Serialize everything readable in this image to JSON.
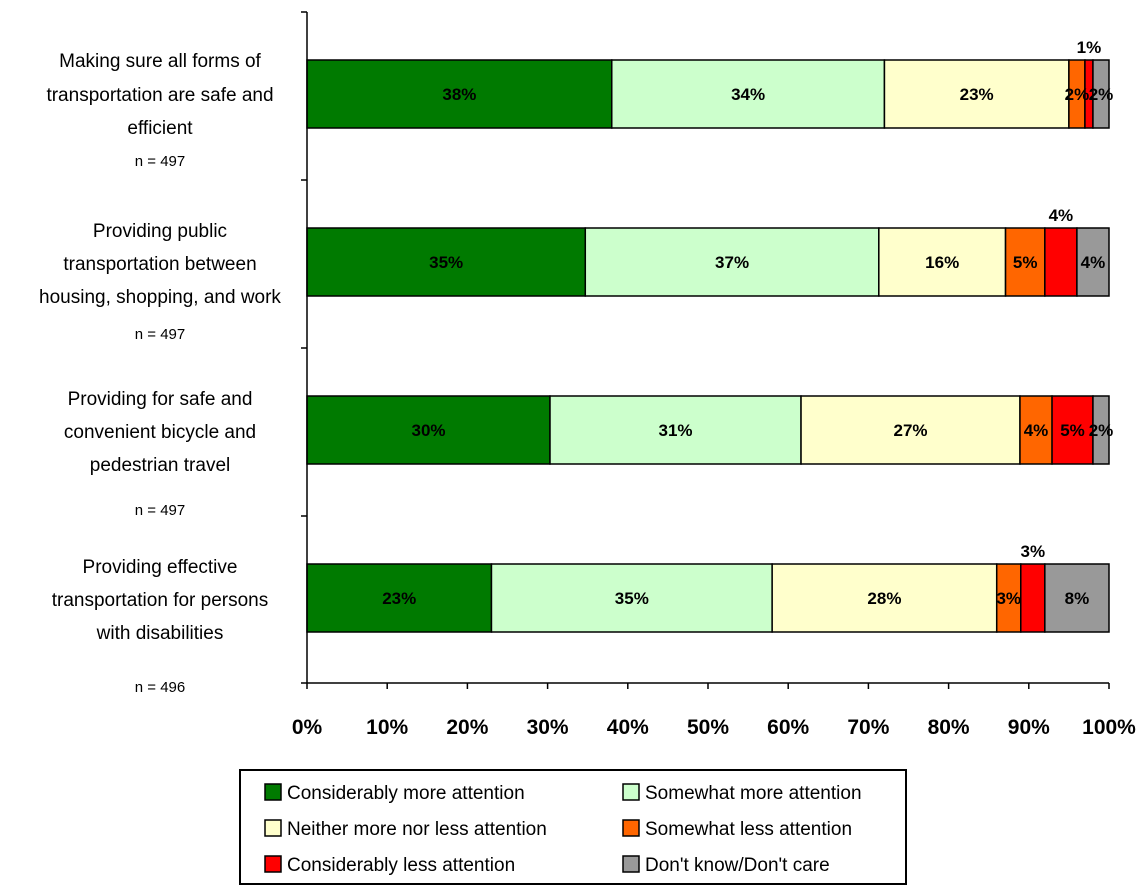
{
  "chart_data": {
    "type": "bar",
    "orientation": "horizontal",
    "stacked": true,
    "xlim": [
      0,
      100
    ],
    "x_ticks": [
      "0%",
      "10%",
      "20%",
      "30%",
      "40%",
      "50%",
      "60%",
      "70%",
      "80%",
      "90%",
      "100%"
    ],
    "grid": false,
    "legend_position": "bottom",
    "categories": [
      {
        "lines": [
          "Making sure all forms of",
          "transportation are safe and",
          "efficient"
        ],
        "n": "n = 497"
      },
      {
        "lines": [
          "Providing public",
          "transportation between",
          "housing, shopping, and work"
        ],
        "n": "n = 497"
      },
      {
        "lines": [
          "Providing for safe and",
          "convenient bicycle and",
          "pedestrian travel"
        ],
        "n": "n = 497"
      },
      {
        "lines": [
          "Providing effective",
          "transportation for persons",
          "with disabilities"
        ],
        "n": "n = 496"
      }
    ],
    "series": [
      {
        "name": "Considerably more attention",
        "color": "#007a00",
        "values": [
          38,
          34.7,
          30.3,
          23
        ],
        "labels": [
          "38%",
          "35%",
          "30%",
          "23%"
        ],
        "label_pos": [
          "in",
          "in",
          "in",
          "in"
        ]
      },
      {
        "name": "Somewhat more attention",
        "color": "#ccffcc",
        "values": [
          34,
          36.6,
          31.3,
          35
        ],
        "labels": [
          "34%",
          "37%",
          "31%",
          "35%"
        ],
        "label_pos": [
          "in",
          "in",
          "in",
          "in"
        ]
      },
      {
        "name": "Neither more nor less attention",
        "color": "#ffffcc",
        "values": [
          23,
          15.8,
          27.3,
          28
        ],
        "labels": [
          "23%",
          "16%",
          "27%",
          "28%"
        ],
        "label_pos": [
          "in",
          "in",
          "in",
          "in"
        ]
      },
      {
        "name": "Somewhat less attention",
        "color": "#ff6600",
        "values": [
          2,
          4.9,
          4,
          3
        ],
        "labels": [
          "2%",
          "5%",
          "4%",
          "3%"
        ],
        "label_pos": [
          "in",
          "in",
          "in",
          "in"
        ]
      },
      {
        "name": "Considerably less attention",
        "color": "#ff0000",
        "values": [
          1,
          4,
          5.1,
          3
        ],
        "labels": [
          "1%",
          "4%",
          "5%",
          "3%"
        ],
        "label_pos": [
          "above",
          "above",
          "in",
          "above"
        ]
      },
      {
        "name": "Don't know/Don't care",
        "color": "#999999",
        "values": [
          2,
          4,
          2,
          8
        ],
        "labels": [
          "2%",
          "4%",
          "2%",
          "8%"
        ],
        "label_pos": [
          "in",
          "in",
          "in",
          "in"
        ]
      }
    ]
  }
}
